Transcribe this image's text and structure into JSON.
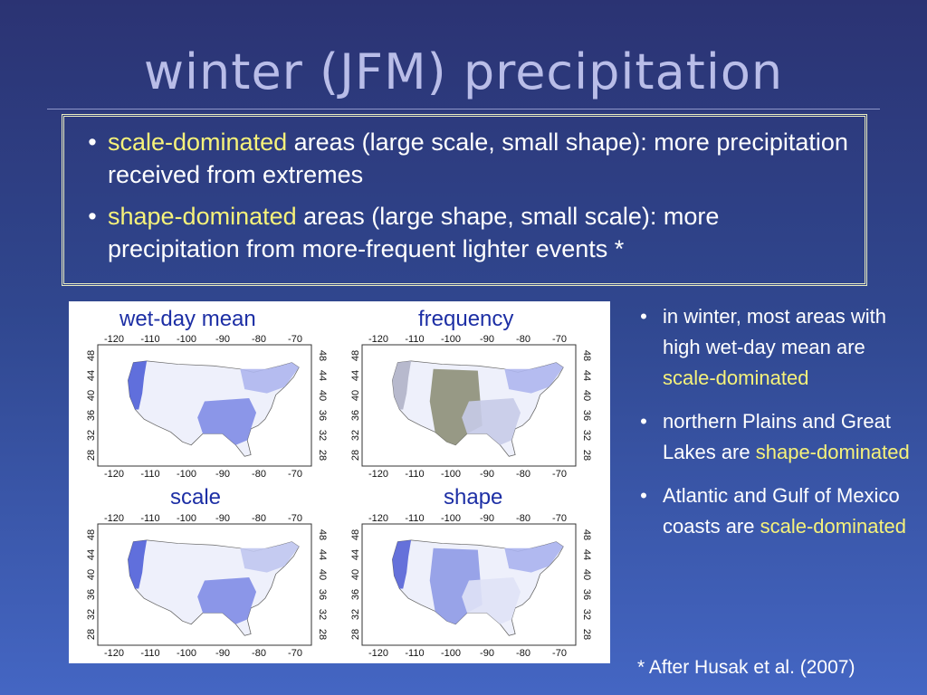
{
  "title": "winter (JFM) precipitation",
  "box_bullets": [
    {
      "bullet": "•",
      "hl": "scale-dominated",
      "rest": " areas (large scale, small shape): more precipitation received from extremes"
    },
    {
      "bullet": "•",
      "hl": "shape-dominated",
      "rest": " areas (large shape, small scale): more precipitation from more-frequent lighter events *"
    }
  ],
  "maps": {
    "labels": [
      "wet-day mean",
      "frequency",
      "scale",
      "shape"
    ],
    "lon_ticks": [
      "-120",
      "-110",
      "-100",
      "-90",
      "-80",
      "-70"
    ],
    "lat_ticks": [
      "28",
      "32",
      "36",
      "40",
      "44",
      "48"
    ]
  },
  "side_bullets": [
    {
      "bullet": "•",
      "pre": "in winter, most areas with high wet-day mean are ",
      "hl": "scale-dominated"
    },
    {
      "bullet": "•",
      "pre": "northern Plains and Great Lakes are ",
      "hl": "shape-dominated"
    },
    {
      "bullet": "•",
      "pre": "Atlantic and Gulf of Mexico coasts are ",
      "hl": "scale-dominated"
    }
  ],
  "footnote": "* After Husak et al. (2007)",
  "colors": {
    "accent": "#f6f27a",
    "title": "#b9bde8",
    "map_blue": "#5566dd",
    "map_gray": "#8d8f78"
  }
}
